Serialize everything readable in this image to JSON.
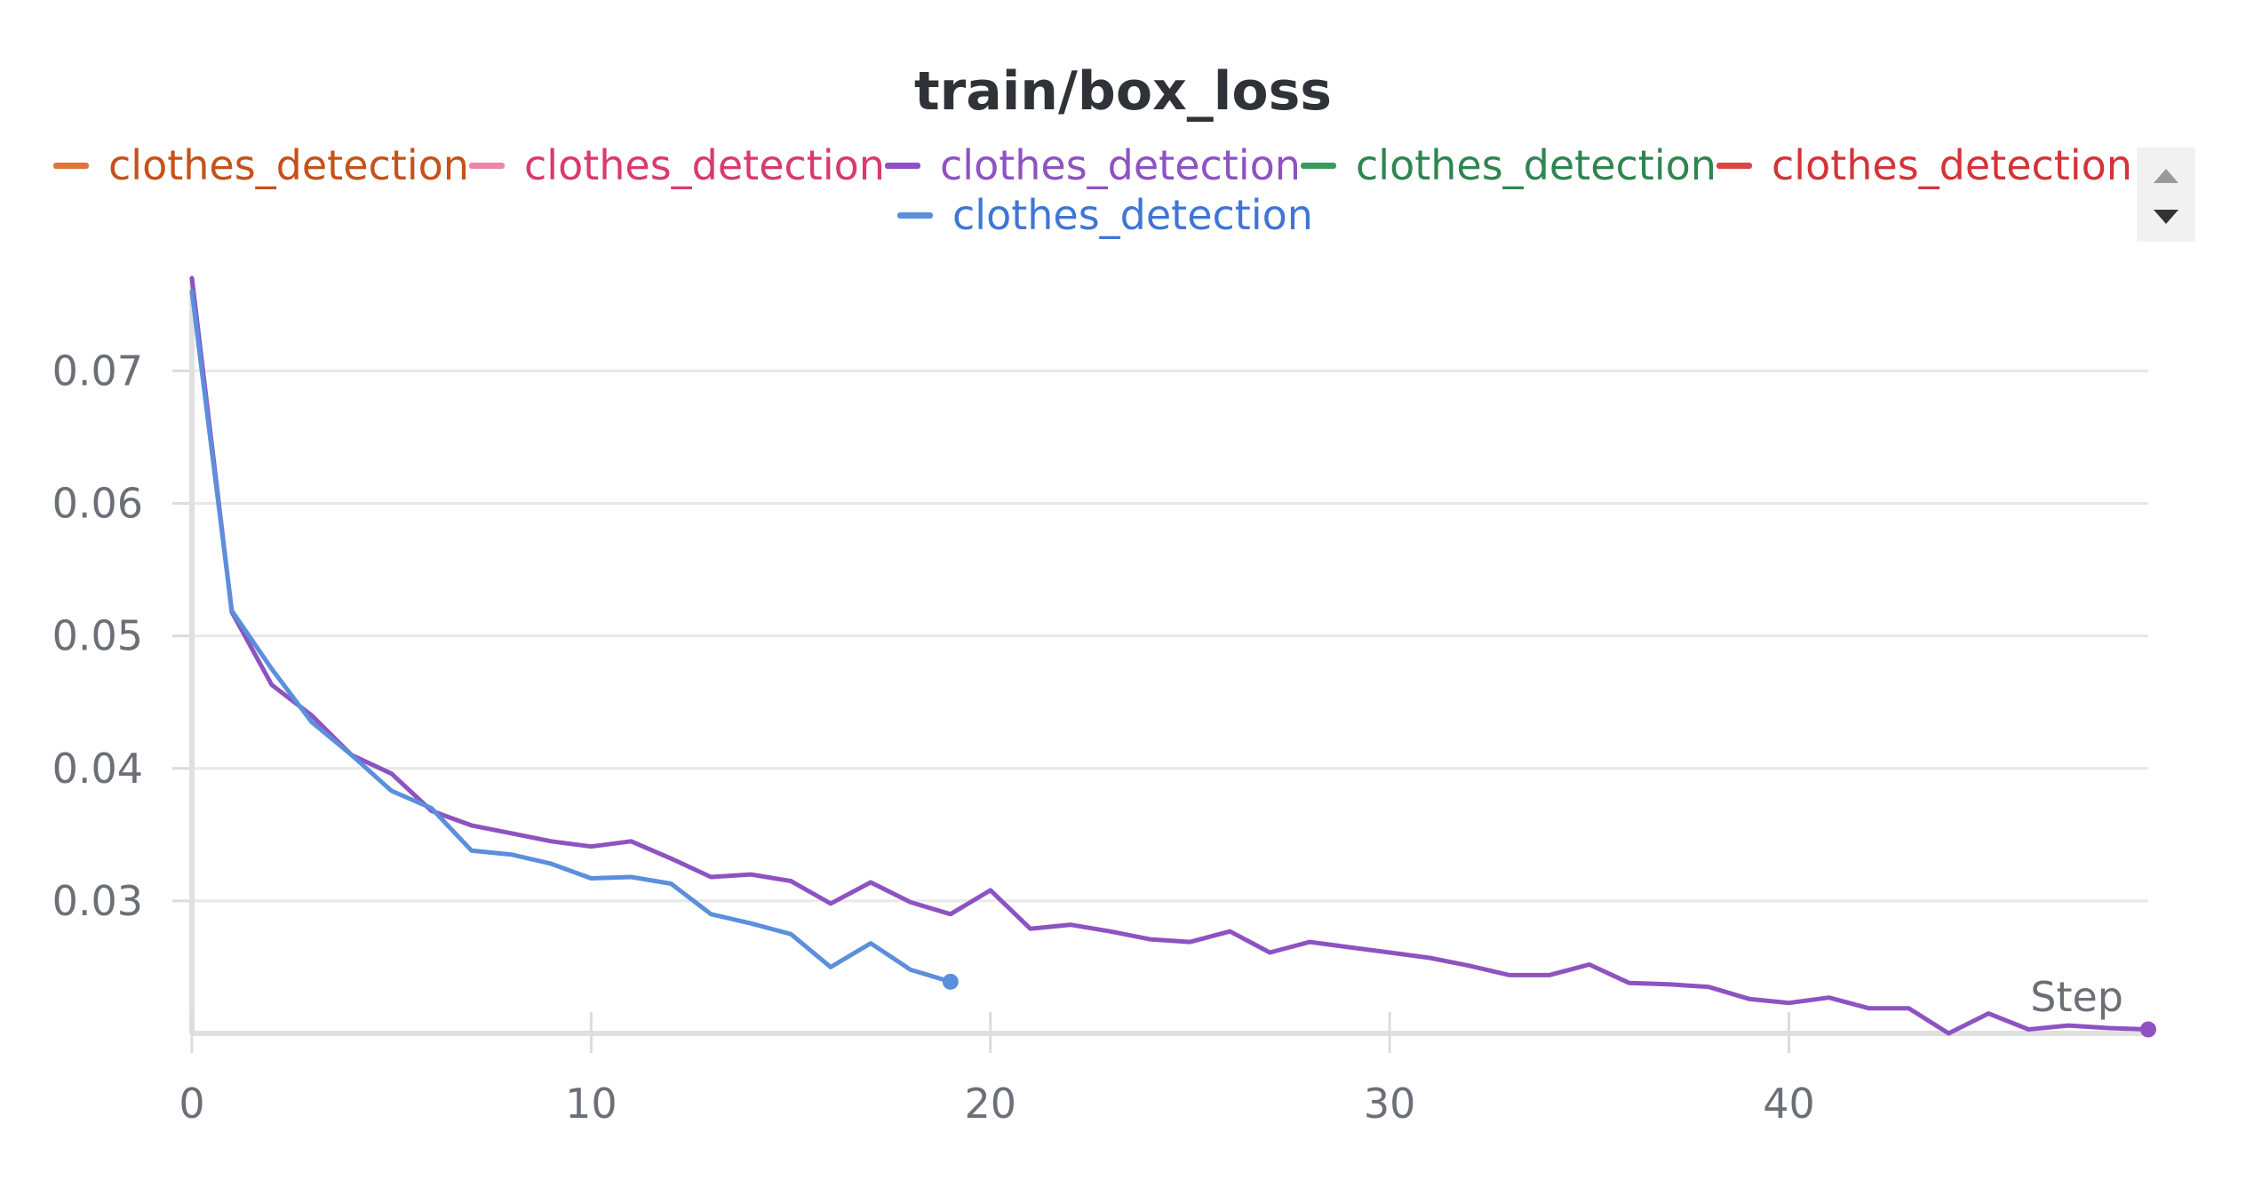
{
  "title": "train/box_loss",
  "legend": [
    {
      "label": "clothes_detection",
      "color": "#e0743a",
      "text_color": "#c4521b"
    },
    {
      "label": "clothes_detection",
      "color": "#e889a8",
      "text_color": "#d93a6e"
    },
    {
      "label": "clothes_detection",
      "color": "#8e52c1",
      "text_color": "#8e52c1"
    },
    {
      "label": "clothes_detection",
      "color": "#3d9a5f",
      "text_color": "#2f8550"
    },
    {
      "label": "clothes_detection",
      "color": "#db4748",
      "text_color": "#d23438"
    },
    {
      "label": "clothes_detection",
      "color": "#5b8fdc",
      "text_color": "#3f76d6"
    }
  ],
  "chart_data": {
    "type": "line",
    "title": "train/box_loss",
    "xlabel": "Step",
    "ylabel": "",
    "xlim": [
      0,
      49
    ],
    "ylim": [
      0.02,
      0.077
    ],
    "x_ticks": [
      0,
      10,
      20,
      30,
      40
    ],
    "y_ticks": [
      0.03,
      0.04,
      0.05,
      0.06,
      0.07
    ],
    "y_tick_labels": [
      "0.03",
      "0.04",
      "0.05",
      "0.06",
      "0.07"
    ],
    "grid": true,
    "legend_position": "top",
    "series": [
      {
        "name": "clothes_detection",
        "color": "#8e52c1",
        "x": [
          0,
          1,
          2,
          3,
          4,
          5,
          6,
          7,
          8,
          9,
          10,
          11,
          12,
          13,
          14,
          15,
          16,
          17,
          18,
          19,
          20,
          21,
          22,
          23,
          24,
          25,
          26,
          27,
          28,
          29,
          30,
          31,
          32,
          33,
          34,
          35,
          36,
          37,
          38,
          39,
          40,
          41,
          42,
          43,
          44,
          45,
          46,
          47,
          48,
          49
        ],
        "y": [
          0.077,
          0.0518,
          0.0463,
          0.044,
          0.041,
          0.0396,
          0.0368,
          0.0357,
          0.0351,
          0.0345,
          0.0341,
          0.0345,
          0.0332,
          0.0318,
          0.032,
          0.0315,
          0.0298,
          0.0314,
          0.0299,
          0.029,
          0.0308,
          0.0279,
          0.0282,
          0.0277,
          0.0271,
          0.0269,
          0.0277,
          0.0261,
          0.0269,
          0.0265,
          0.0261,
          0.0257,
          0.0251,
          0.0244,
          0.0244,
          0.0252,
          0.0238,
          0.0237,
          0.0235,
          0.0226,
          0.0223,
          0.0227,
          0.0219,
          0.0219,
          0.02,
          0.0215,
          0.0203,
          0.0206,
          0.0204,
          0.0203
        ]
      },
      {
        "name": "clothes_detection",
        "color": "#5b8fdc",
        "x": [
          0,
          1,
          2,
          3,
          4,
          5,
          6,
          7,
          8,
          9,
          10,
          11,
          12,
          13,
          14,
          15,
          16,
          17,
          18,
          19
        ],
        "y": [
          0.076,
          0.0519,
          0.0475,
          0.0435,
          0.041,
          0.0383,
          0.037,
          0.0338,
          0.0335,
          0.0328,
          0.0317,
          0.0318,
          0.0313,
          0.029,
          0.0283,
          0.0275,
          0.025,
          0.0268,
          0.0248,
          0.0239
        ]
      }
    ]
  }
}
